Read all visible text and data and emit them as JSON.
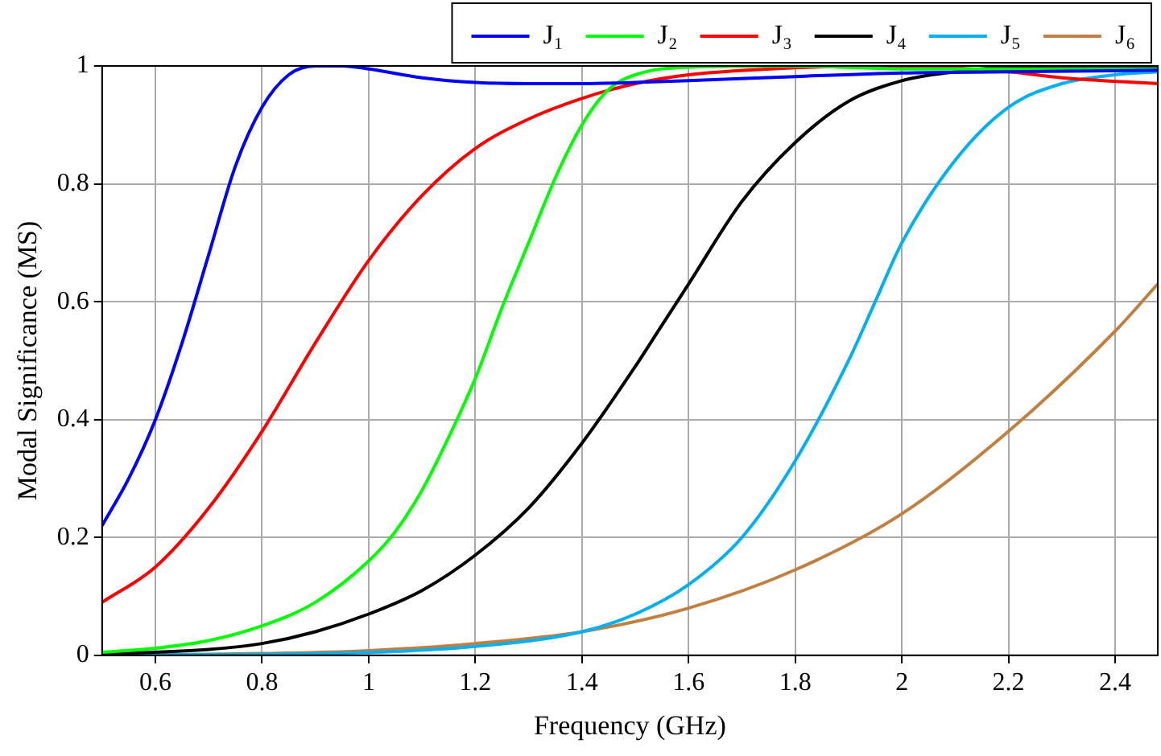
{
  "chart_data": {
    "type": "line",
    "xlabel": "Frequency (GHz)",
    "ylabel": "Modal Significance (MS)",
    "xlim": [
      0.5,
      2.48
    ],
    "ylim": [
      0,
      1
    ],
    "xticks": [
      0.6,
      0.8,
      1,
      1.2,
      1.4,
      1.6,
      1.8,
      2,
      2.2,
      2.4
    ],
    "yticks": [
      0,
      0.2,
      0.4,
      0.6,
      0.8,
      1
    ],
    "grid": true,
    "legend": "top right",
    "marker": "none",
    "line_style": "solid",
    "series": [
      {
        "name": "J₁",
        "color": "#0000ff",
        "x": [
          0.5,
          0.55,
          0.6,
          0.65,
          0.7,
          0.75,
          0.8,
          0.85,
          0.9,
          0.95,
          1.0,
          1.1,
          1.2,
          1.3,
          1.4,
          1.5,
          1.6,
          1.8,
          2.0,
          2.2,
          2.48
        ],
        "values": [
          0.22,
          0.3,
          0.4,
          0.53,
          0.68,
          0.83,
          0.93,
          0.985,
          1.0,
          1.0,
          0.995,
          0.98,
          0.972,
          0.97,
          0.97,
          0.972,
          0.975,
          0.982,
          0.988,
          0.99,
          0.993
        ]
      },
      {
        "name": "J₂",
        "color": "#00ff00",
        "x": [
          0.5,
          0.6,
          0.7,
          0.8,
          0.9,
          1.0,
          1.05,
          1.1,
          1.15,
          1.2,
          1.25,
          1.3,
          1.35,
          1.4,
          1.45,
          1.5,
          1.6,
          1.8,
          2.0,
          2.48
        ],
        "values": [
          0.005,
          0.012,
          0.025,
          0.05,
          0.09,
          0.16,
          0.21,
          0.28,
          0.37,
          0.47,
          0.59,
          0.7,
          0.81,
          0.9,
          0.96,
          0.985,
          0.998,
          1.0,
          0.995,
          0.995
        ]
      },
      {
        "name": "J₃",
        "color": "#ff0000",
        "x": [
          0.5,
          0.6,
          0.7,
          0.8,
          0.9,
          1.0,
          1.1,
          1.2,
          1.3,
          1.4,
          1.5,
          1.6,
          1.8,
          2.0,
          2.2,
          2.3,
          2.48
        ],
        "values": [
          0.09,
          0.15,
          0.25,
          0.38,
          0.53,
          0.67,
          0.78,
          0.86,
          0.91,
          0.945,
          0.97,
          0.985,
          0.997,
          1.0,
          0.99,
          0.98,
          0.97
        ]
      },
      {
        "name": "J₄",
        "color": "#000000",
        "x": [
          0.5,
          0.7,
          0.8,
          0.9,
          1.0,
          1.1,
          1.2,
          1.3,
          1.4,
          1.5,
          1.55,
          1.6,
          1.7,
          1.8,
          1.9,
          2.0,
          2.1,
          2.2,
          2.48
        ],
        "values": [
          0.002,
          0.01,
          0.02,
          0.04,
          0.07,
          0.11,
          0.17,
          0.25,
          0.36,
          0.49,
          0.56,
          0.63,
          0.77,
          0.87,
          0.94,
          0.975,
          0.99,
          0.998,
          1.0
        ]
      },
      {
        "name": "J₅",
        "color": "#00b0f0",
        "x": [
          0.5,
          1.0,
          1.2,
          1.4,
          1.5,
          1.6,
          1.7,
          1.8,
          1.9,
          1.95,
          2.0,
          2.1,
          2.2,
          2.3,
          2.4,
          2.48
        ],
        "values": [
          0,
          0.005,
          0.015,
          0.04,
          0.07,
          0.12,
          0.2,
          0.33,
          0.5,
          0.6,
          0.7,
          0.84,
          0.93,
          0.97,
          0.985,
          0.99
        ]
      },
      {
        "name": "J₆",
        "color": "#c08040",
        "x": [
          0.5,
          0.8,
          1.0,
          1.2,
          1.4,
          1.6,
          1.8,
          2.0,
          2.2,
          2.4,
          2.48
        ],
        "values": [
          0,
          0.003,
          0.008,
          0.02,
          0.04,
          0.08,
          0.145,
          0.24,
          0.38,
          0.55,
          0.63
        ]
      }
    ]
  }
}
